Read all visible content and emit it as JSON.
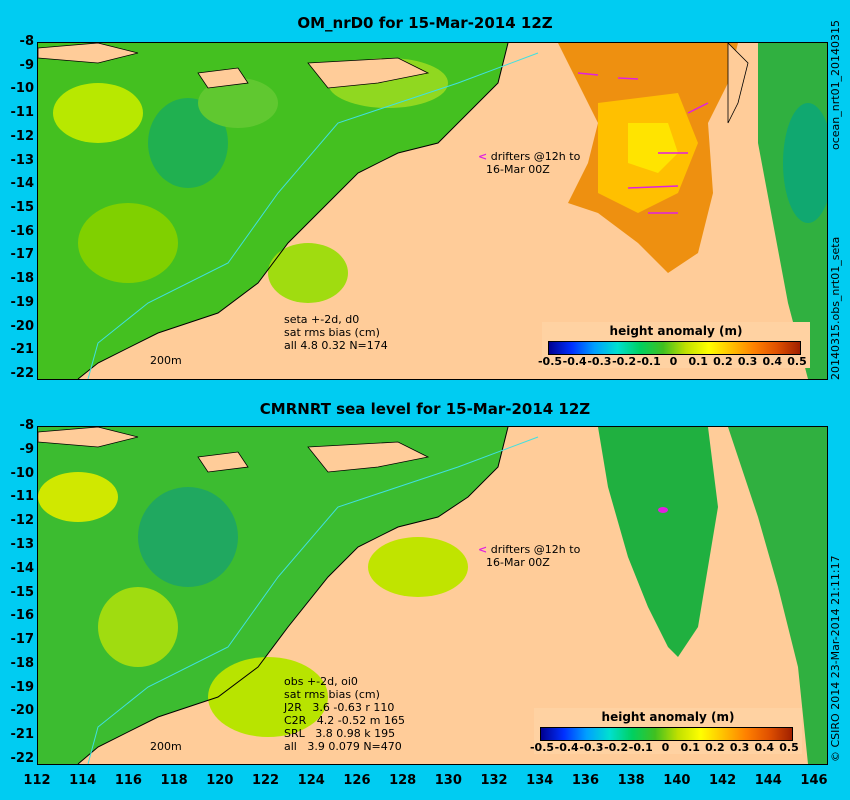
{
  "panels": [
    {
      "title": "OM_nrD0 for 15-Mar-2014 12Z",
      "drifters": [
        "drifters @12h to",
        "16-Mar 00Z"
      ],
      "stats": "seta +-2d, d0\nsat rms bias (cm)\nall 4.8 0.32 N=174",
      "scale_label": "200m",
      "side_label": "ocean_nrt01_20140315",
      "side_label2": "20140315.obs_nrt01_seta"
    },
    {
      "title": "CMRNRT sea level  for 15-Mar-2014 12Z",
      "drifters": [
        "drifters @12h to",
        "16-Mar 00Z"
      ],
      "stats": "obs +-2d, oi0\nsat rms bias (cm)\nJ2R   3.6 -0.63 r 110\nC2R   4.2 -0.52 m 165\nSRL   3.8 0.98 k 195\nall   3.9 0.079 N=470",
      "scale_label": "200m",
      "side_label": "© CSIRO 2014  23-Mar-2014 21:11:17"
    }
  ],
  "legend": {
    "title": "height anomaly (m)",
    "ticks": [
      "-0.5",
      "-0.4",
      "-0.3",
      "-0.2",
      "-0.1",
      "0",
      "0.1",
      "0.2",
      "0.3",
      "0.4",
      "0.5"
    ]
  },
  "axes": {
    "lat_ticks": [
      "-8",
      "-9",
      "-10",
      "-11",
      "-12",
      "-13",
      "-14",
      "-15",
      "-16",
      "-17",
      "-18",
      "-19",
      "-20",
      "-21",
      "-22"
    ],
    "lon_ticks": [
      "112",
      "114",
      "116",
      "118",
      "120",
      "122",
      "124",
      "126",
      "128",
      "130",
      "132",
      "134",
      "136",
      "138",
      "140",
      "142",
      "144",
      "146"
    ]
  },
  "colors": {
    "background": "#00ccf2",
    "land": "#ffcc99",
    "ocean": "#44cc22",
    "drifter": "#e020e0"
  }
}
